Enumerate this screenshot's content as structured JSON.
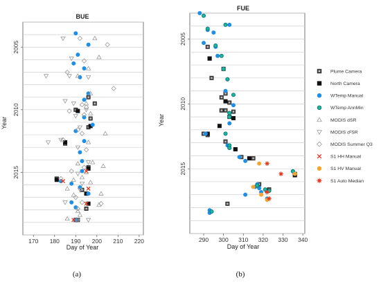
{
  "chart_data": [
    {
      "type": "scatter",
      "title": "BUE",
      "xlabel": "Day of Year",
      "ylabel": "Year",
      "xlim": [
        165,
        222
      ],
      "xticks": [
        170,
        180,
        190,
        200,
        210,
        220
      ],
      "ylim": [
        2003,
        2020
      ],
      "yticks": [
        2005,
        2010,
        2015
      ],
      "y_reversed": true,
      "grid": "horizontal-yearly",
      "subfigure_label": "(a)",
      "series": [
        {
          "name": "Plume Camera",
          "points": [
            [
              196,
              2009.0
            ],
            [
              199,
              2009.5
            ],
            [
              190,
              2010.0
            ],
            [
              197,
              2010.7
            ],
            [
              196,
              2011.4
            ],
            [
              185,
              2012.7
            ],
            [
              196,
              2014.6
            ],
            [
              181,
              2015.5
            ],
            [
              193,
              2016.4
            ],
            [
              195,
              2017.9
            ],
            [
              191,
              2018.8
            ]
          ]
        },
        {
          "name": "North Camera",
          "points": [
            [
              191,
              2010.1
            ],
            [
              197,
              2011.3
            ],
            [
              185,
              2012.6
            ],
            [
              196,
              2014.7
            ],
            [
              181,
              2015.6
            ],
            [
              195,
              2016.7
            ],
            [
              196,
              2017.5
            ],
            [
              190,
              2018.8
            ]
          ]
        },
        {
          "name": "WTemp Manual",
          "points": [
            [
              190,
              2003.9
            ],
            [
              196,
              2004.8
            ],
            [
              191,
              2005.6
            ],
            [
              189,
              2006.3
            ],
            [
              194,
              2006.7
            ],
            [
              192,
              2007.4
            ],
            [
              196,
              2008.7
            ],
            [
              194,
              2009.2
            ],
            [
              194,
              2010.6
            ],
            [
              198,
              2011.2
            ],
            [
              190,
              2011.7
            ],
            [
              194,
              2012.5
            ],
            [
              192,
              2013.4
            ],
            [
              193,
              2014.1
            ],
            [
              193,
              2014.9
            ],
            [
              183,
              2015.7
            ],
            [
              188,
              2015.9
            ],
            [
              192,
              2016.2
            ],
            [
              196,
              2016.7
            ],
            [
              188,
              2017.4
            ],
            [
              190,
              2017.8
            ],
            [
              190,
              2018.8
            ]
          ]
        },
        {
          "name": "MODIS dSR",
          "points": [
            [
              199,
              2004.3
            ],
            [
              201,
              2005.8
            ],
            [
              196,
              2006.7
            ],
            [
              191,
              2007.3
            ],
            [
              197,
              2008.7
            ],
            [
              195,
              2009.5
            ],
            [
              197,
              2010.3
            ],
            [
              204,
              2011.9
            ],
            [
              196,
              2012.6
            ],
            [
              191,
              2014.3
            ],
            [
              203,
              2014.5
            ],
            [
              195,
              2015.0
            ],
            [
              193,
              2015.4
            ],
            [
              189,
              2015.6
            ],
            [
              197,
              2015.8
            ],
            [
              186,
              2016.3
            ],
            [
              189,
              2016.8
            ],
            [
              202,
              2016.7
            ],
            [
              201,
              2017.6
            ],
            [
              191,
              2018.1
            ],
            [
              186,
              2018.7
            ],
            [
              192,
              2018.4
            ],
            [
              198,
              2014.2
            ]
          ]
        },
        {
          "name": "MODIS d2SR",
          "points": [
            [
              184,
              2004.3
            ],
            [
              188,
              2005.9
            ],
            [
              176,
              2007.3
            ],
            [
              187,
              2007.3
            ],
            [
              196,
              2007.4
            ],
            [
              185,
              2009.3
            ],
            [
              189,
              2009.5
            ],
            [
              195,
              2010.0
            ],
            [
              190,
              2010.5
            ],
            [
              192,
              2011.4
            ],
            [
              177,
              2012.6
            ],
            [
              183,
              2012.4
            ],
            [
              191,
              2013.0
            ],
            [
              196,
              2014.2
            ],
            [
              191,
              2015.1
            ],
            [
              193,
              2015.9
            ],
            [
              192,
              2016.4
            ],
            [
              185,
              2017.4
            ],
            [
              196,
              2018.8
            ]
          ]
        },
        {
          "name": "MODIS Summer Q3",
          "points": [
            [
              192,
              2004.3
            ],
            [
              205,
              2004.8
            ],
            [
              194,
              2006.1
            ],
            [
              186,
              2007.0
            ],
            [
              208,
              2008.3
            ],
            [
              193,
              2009.6
            ],
            [
              195,
              2009.8
            ],
            [
              187,
              2010.1
            ],
            [
              194,
              2010.4
            ],
            [
              191,
              2011.6
            ],
            [
              193,
              2011.9
            ],
            [
              184,
              2012.4
            ],
            [
              195,
              2013.2
            ],
            [
              194,
              2014.6
            ],
            [
              188,
              2014.9
            ],
            [
              183,
              2015.5
            ],
            [
              193,
              2017.4
            ],
            [
              202,
              2017.5
            ],
            [
              190,
              2017.0
            ],
            [
              191,
              2017.9
            ],
            [
              191,
              2018.8
            ]
          ]
        },
        {
          "name": "S1 HH Manual",
          "points": [
            [
              195,
              2014.9
            ],
            [
              184,
              2015.7
            ],
            [
              196,
              2016.3
            ],
            [
              195,
              2017.5
            ],
            [
              189,
              2018.8
            ]
          ]
        }
      ]
    },
    {
      "type": "scatter",
      "title": "FUE",
      "xlabel": "Day of Year",
      "ylabel": "Year",
      "xlim": [
        283,
        341
      ],
      "xticks": [
        290,
        300,
        310,
        320,
        330,
        340
      ],
      "ylim": [
        2003,
        2020
      ],
      "yticks": [
        2005,
        2010,
        2015
      ],
      "y_reversed": true,
      "grid": "horizontal-yearly",
      "subfigure_label": "(b)",
      "series": [
        {
          "name": "Plume Camera",
          "points": [
            [
              292,
              2005.6
            ],
            [
              293,
              2006.5
            ],
            [
              300,
              2007.3
            ],
            [
              294,
              2008.0
            ],
            [
              301,
              2009.2
            ],
            [
              299,
              2009.5
            ],
            [
              303,
              2009.9
            ],
            [
              301,
              2010.5
            ],
            [
              305,
              2010.6
            ],
            [
              299,
              2010.5
            ],
            [
              303,
              2011.0
            ],
            [
              290,
              2012.3
            ],
            [
              292,
              2012.4
            ],
            [
              301,
              2012.9
            ],
            [
              306,
              2013.5
            ],
            [
              309,
              2014.1
            ],
            [
              315,
              2014.2
            ],
            [
              336,
              2015.4
            ],
            [
              318,
              2016.2
            ],
            [
              323,
              2016.6
            ],
            [
              302,
              2017.7
            ]
          ]
        },
        {
          "name": "North Camera",
          "points": [
            [
              293,
              2006.5
            ],
            [
              301,
              2009.8
            ],
            [
              305,
              2011.1
            ],
            [
              292,
              2012.3
            ],
            [
              306,
              2013.5
            ],
            [
              313,
              2014.2
            ],
            [
              336,
              2015.5
            ],
            [
              322,
              2016.7
            ],
            [
              298,
              2011.7
            ]
          ]
        },
        {
          "name": "WTemp Manual",
          "points": [
            [
              288,
              2003.0
            ],
            [
              303,
              2003.9
            ],
            [
              292,
              2004.3
            ],
            [
              295,
              2004.5
            ],
            [
              290,
              2005.3
            ],
            [
              296,
              2005.6
            ],
            [
              297,
              2006.3
            ],
            [
              300,
              2007.3
            ],
            [
              302,
              2008.1
            ],
            [
              301,
              2009.0
            ],
            [
              305,
              2010.1
            ],
            [
              303,
              2010.7
            ],
            [
              303,
              2011.5
            ],
            [
              291,
              2012.3
            ],
            [
              302,
              2013.2
            ],
            [
              303,
              2013.4
            ],
            [
              308,
              2014.1
            ],
            [
              311,
              2014.4
            ],
            [
              335,
              2015.2
            ],
            [
              317,
              2016.2
            ],
            [
              316,
              2016.4
            ],
            [
              318,
              2016.5
            ],
            [
              319,
              2016.8
            ],
            [
              311,
              2017.0
            ],
            [
              322,
              2017.3
            ],
            [
              293,
              2018.2
            ],
            [
              293,
              2018.4
            ]
          ]
        },
        {
          "name": "WTemp AnnMin",
          "points": [
            [
              290,
              2003.2
            ],
            [
              301,
              2003.9
            ],
            [
              292,
              2004.2
            ],
            [
              296,
              2005.5
            ],
            [
              299,
              2006.3
            ],
            [
              300,
              2007.3
            ],
            [
              302,
              2008.1
            ],
            [
              305,
              2009.3
            ],
            [
              303,
              2010.7
            ],
            [
              303,
              2011.0
            ],
            [
              301,
              2012.3
            ],
            [
              303,
              2013.2
            ],
            [
              303,
              2013.4
            ],
            [
              335,
              2015.2
            ],
            [
              317,
              2016.3
            ],
            [
              321,
              2016.6
            ],
            [
              323,
              2016.7
            ],
            [
              294,
              2018.3
            ]
          ]
        },
        {
          "name": "S1 HV Manual",
          "points": [
            [
              318,
              2014.6
            ],
            [
              336,
              2015.4
            ],
            [
              315,
              2016.4
            ],
            [
              319,
              2017.0
            ],
            [
              322,
              2017.4
            ]
          ]
        },
        {
          "name": "S1 Auto Median",
          "points": [
            [
              322,
              2014.6
            ],
            [
              329,
              2015.4
            ],
            [
              322,
              2016.8
            ],
            [
              323,
              2017.3
            ]
          ]
        }
      ]
    }
  ],
  "legend": [
    {
      "label": "Plume Camera",
      "marker": "sq-gray"
    },
    {
      "label": "North Camera",
      "marker": "sq-black"
    },
    {
      "label": "WTemp Manual",
      "marker": "circ-blue"
    },
    {
      "label": "WTemp AnnMin",
      "marker": "circ-teal"
    },
    {
      "label": "MODIS dSR",
      "marker": "tri-up"
    },
    {
      "label": "MODIS d²SR",
      "marker": "tri-down"
    },
    {
      "label": "MODIS Summer Q3",
      "marker": "diamond"
    },
    {
      "label": "S1 HH Manual",
      "marker": "x-red"
    },
    {
      "label": "S1 HV Manual",
      "marker": "circ-orange"
    },
    {
      "label": "S1 Auto Median",
      "marker": "star-red"
    }
  ],
  "colors": {
    "wtemp_blue": "#1f8fe6",
    "wtemp_teal": "#18b7a6",
    "modis_gray": "#9a9a9a",
    "plume_gray": "#555555",
    "north_black": "#111111",
    "s1_red": "#e8341c",
    "s1_orange": "#f6a530",
    "grid": "#cfcfcf"
  }
}
